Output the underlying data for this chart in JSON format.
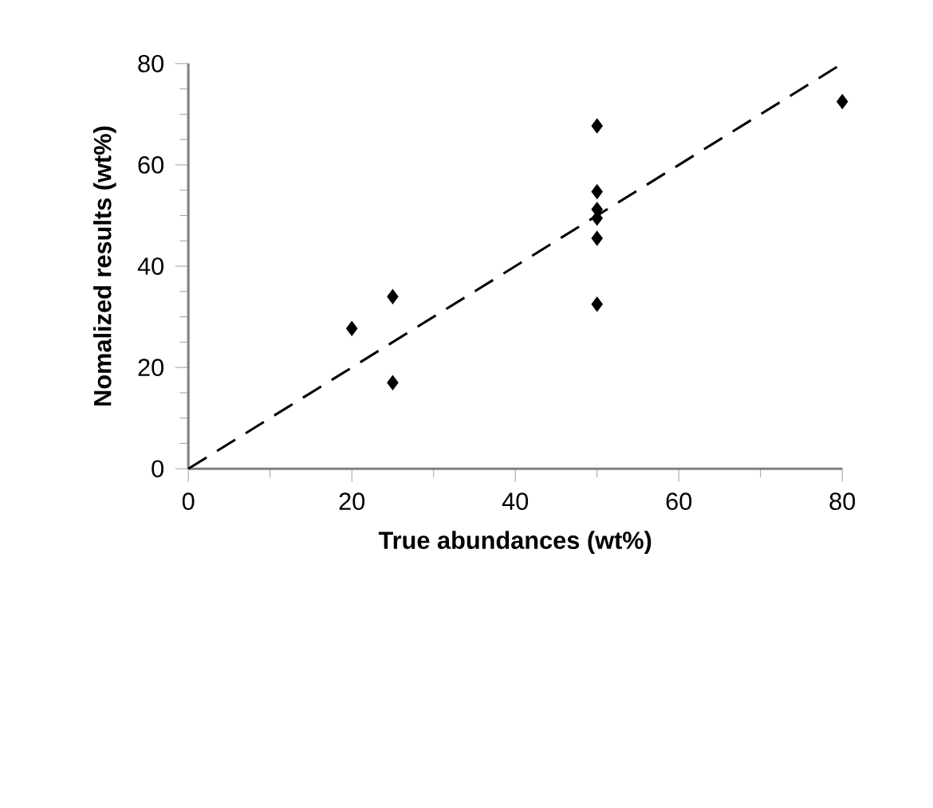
{
  "chart_data": {
    "type": "scatter",
    "xlabel": "True abundances (wt%)",
    "ylabel": "Nomalized results (wt%)",
    "xlim": [
      0,
      80
    ],
    "xticks": [
      0,
      20,
      40,
      60,
      80
    ],
    "ylim": [
      0,
      80
    ],
    "yticks": [
      0,
      20,
      40,
      60,
      80
    ],
    "marker": "diamond",
    "grid": false,
    "series": [
      {
        "color": "#000000",
        "x": [
          20,
          25,
          25,
          50,
          50,
          50,
          50,
          50,
          50,
          80
        ],
        "values": [
          27.7,
          34.0,
          17.0,
          67.7,
          54.7,
          51.2,
          49.5,
          45.5,
          32.5,
          72.5
        ]
      },
      {
        "type": "line",
        "color": "#000000",
        "line_style": "dashed",
        "marker": "none",
        "x": [
          0,
          80
        ],
        "values": [
          0,
          80
        ]
      }
    ]
  }
}
